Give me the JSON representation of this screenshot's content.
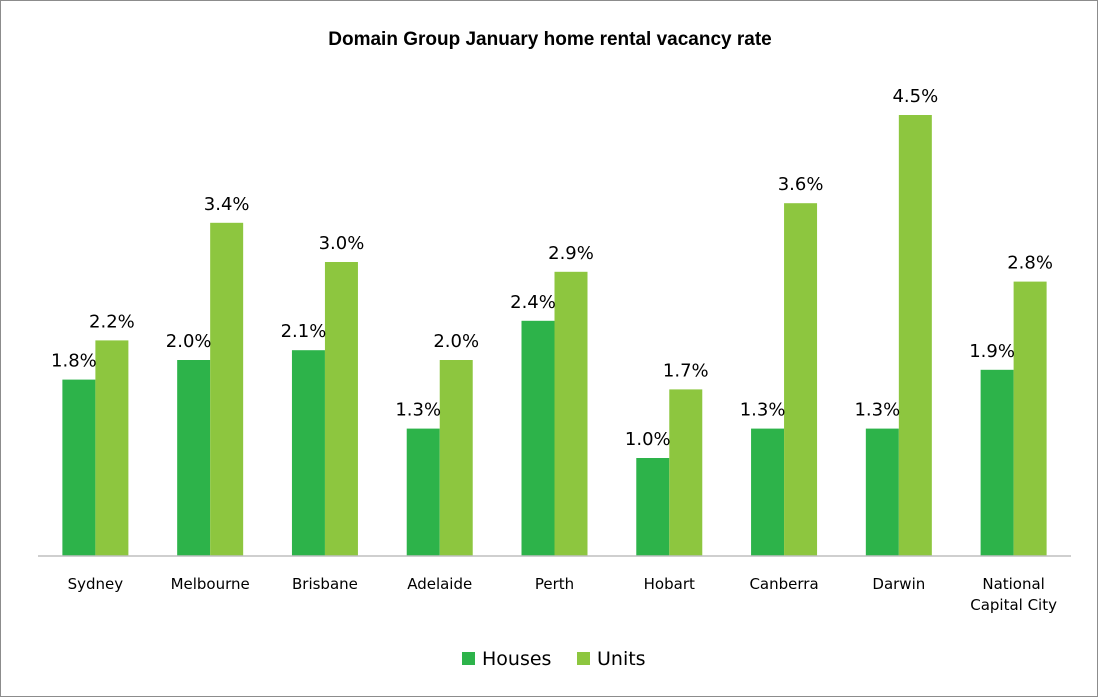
{
  "chart_data": {
    "type": "bar",
    "title": "Domain Group January home rental vacancy rate",
    "xlabel": "",
    "ylabel": "",
    "categories": [
      "Sydney",
      "Melbourne",
      "Brisbane",
      "Adelaide",
      "Perth",
      "Hobart",
      "Canberra",
      "Darwin",
      "National Capital City"
    ],
    "category_lines": [
      [
        "Sydney"
      ],
      [
        "Melbourne"
      ],
      [
        "Brisbane"
      ],
      [
        "Adelaide"
      ],
      [
        "Perth"
      ],
      [
        "Hobart"
      ],
      [
        "Canberra"
      ],
      [
        "Darwin"
      ],
      [
        "National",
        "Capital City"
      ]
    ],
    "series": [
      {
        "name": "Houses",
        "color": "#2db34a",
        "values": [
          1.8,
          2.0,
          2.1,
          1.3,
          2.4,
          1.0,
          1.3,
          1.3,
          1.9
        ],
        "labels": [
          "1.8%",
          "2.0%",
          "2.1%",
          "1.3%",
          "2.4%",
          "1.0%",
          "1.3%",
          "1.3%",
          "1.9%"
        ]
      },
      {
        "name": "Units",
        "color": "#8dc63f",
        "values": [
          2.2,
          3.4,
          3.0,
          2.0,
          2.9,
          1.7,
          3.6,
          4.5,
          2.8
        ],
        "labels": [
          "2.2%",
          "3.4%",
          "3.0%",
          "2.0%",
          "2.9%",
          "1.7%",
          "3.6%",
          "4.5%",
          "2.8%"
        ]
      }
    ],
    "ylim": [
      0,
      5
    ],
    "y_unit": "%",
    "grid": false,
    "legend_position": "bottom"
  }
}
